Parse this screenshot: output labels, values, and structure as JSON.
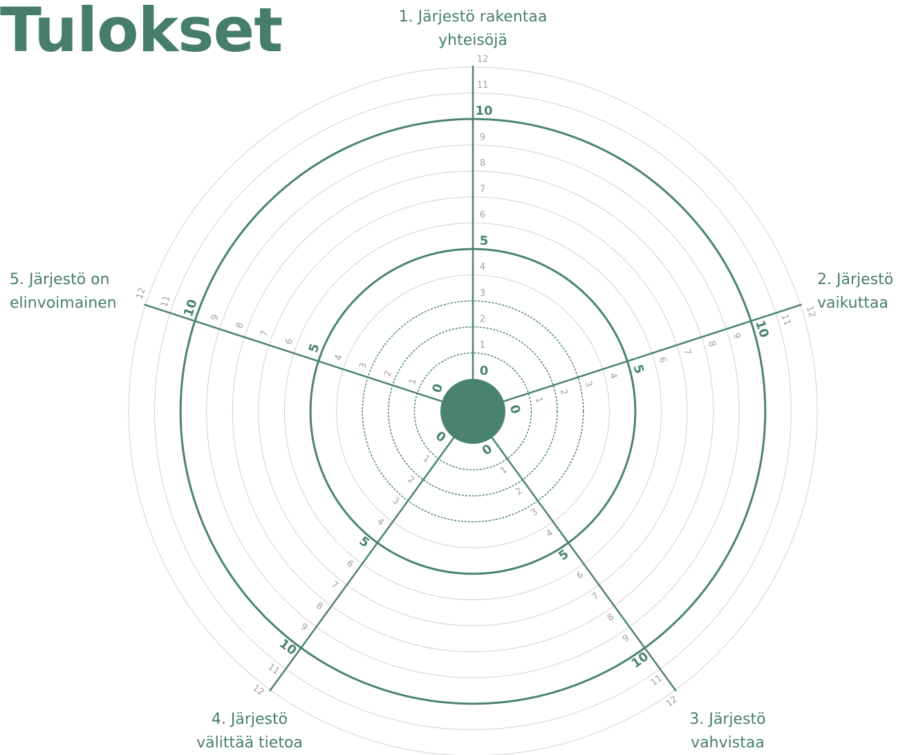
{
  "chart_data": {
    "type": "radar",
    "title": "Tulokset",
    "categories": [
      "1. Järjestö rakentaa yhteisöjä",
      "2. Järjestö vaikuttaa",
      "3. Järjestö vahvistaa",
      "4. Järjestö välittää tietoa",
      "5. Järjestö on elinvoimainen"
    ],
    "rlim": [
      0,
      12
    ],
    "rticks": [
      0,
      1,
      2,
      3,
      4,
      5,
      6,
      7,
      8,
      9,
      10,
      11,
      12
    ],
    "color": "#4a8270"
  }
}
